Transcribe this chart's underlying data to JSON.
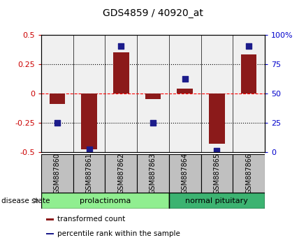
{
  "title": "GDS4859 / 40920_at",
  "samples": [
    "GSM887860",
    "GSM887861",
    "GSM887862",
    "GSM887863",
    "GSM887864",
    "GSM887865",
    "GSM887866"
  ],
  "transformed_count": [
    -0.09,
    -0.48,
    0.35,
    -0.05,
    0.04,
    -0.43,
    0.33
  ],
  "percentile_rank_scaled": [
    -0.25,
    -0.475,
    0.4,
    -0.25,
    0.12,
    -0.49,
    0.4
  ],
  "ylim": [
    -0.5,
    0.5
  ],
  "yticks_left": [
    -0.5,
    -0.25,
    0,
    0.25,
    0.5
  ],
  "yticks_left_labels": [
    "-0.5",
    "-0.25",
    "0",
    "0.25",
    "0.5"
  ],
  "yticks_right_positions": [
    -0.5,
    -0.25,
    0.0,
    0.25,
    0.5
  ],
  "yticks_right_labels": [
    "0",
    "25",
    "50",
    "75",
    "100%"
  ],
  "bar_color": "#8B1A1A",
  "dot_color": "#1C1C8B",
  "plot_bg_color": "#f0f0f0",
  "bar_width": 0.5,
  "dot_size": 40,
  "group_prolactinoma_color": "#90EE90",
  "group_normal_color": "#3CB371",
  "sample_box_color": "#C0C0C0",
  "legend_items": [
    {
      "label": "transformed count",
      "color": "#8B1A1A"
    },
    {
      "label": "percentile rank within the sample",
      "color": "#1C1C8B"
    }
  ],
  "disease_state_label": "disease state"
}
